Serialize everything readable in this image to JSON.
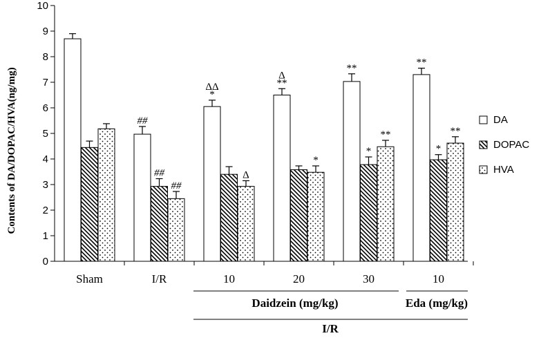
{
  "chart_data": {
    "type": "bar",
    "title": "",
    "xlabel": "",
    "ylabel": "Contents of DA/DOPAC/HVA(ng/mg)",
    "ylim": [
      0,
      10
    ],
    "yticks": [
      "0",
      "1",
      "2",
      "3",
      "4",
      "5",
      "6",
      "7",
      "8",
      "9",
      "10"
    ],
    "grid": false,
    "legend_position": "right",
    "categories": [
      "Sham",
      "I/R",
      "10",
      "20",
      "30",
      "10"
    ],
    "groups": [
      {
        "label": "Daidzein (mg/kg)"
      },
      {
        "label": "Eda (mg/kg)"
      },
      {
        "label": "I/R"
      }
    ],
    "series": [
      {
        "name": "DA",
        "pattern": "open",
        "values": [
          8.7,
          4.97,
          6.05,
          6.5,
          7.03,
          7.3
        ],
        "errors": [
          0.2,
          0.3,
          0.25,
          0.25,
          0.3,
          0.25
        ],
        "annotations": [
          [
            "",
            ""
          ],
          [
            "##",
            ""
          ],
          [
            "*",
            "ΔΔ"
          ],
          [
            "**",
            "Δ"
          ],
          [
            "**",
            ""
          ],
          [
            "**",
            ""
          ]
        ]
      },
      {
        "name": "DOPAC",
        "pattern": "hatch",
        "values": [
          4.45,
          2.93,
          3.4,
          3.58,
          3.78,
          3.97
        ],
        "errors": [
          0.25,
          0.3,
          0.3,
          0.15,
          0.3,
          0.2
        ],
        "annotations": [
          [
            "",
            ""
          ],
          [
            "##",
            ""
          ],
          [
            "",
            ""
          ],
          [
            "",
            ""
          ],
          [
            "*",
            ""
          ],
          [
            "*",
            ""
          ]
        ]
      },
      {
        "name": "HVA",
        "pattern": "dots",
        "values": [
          5.18,
          2.45,
          2.93,
          3.48,
          4.48,
          4.62
        ],
        "errors": [
          0.2,
          0.28,
          0.22,
          0.25,
          0.25,
          0.25
        ],
        "annotations": [
          [
            "",
            ""
          ],
          [
            "##",
            ""
          ],
          [
            "Δ",
            ""
          ],
          [
            "*",
            ""
          ],
          [
            "**",
            ""
          ],
          [
            "**",
            ""
          ]
        ]
      }
    ]
  }
}
